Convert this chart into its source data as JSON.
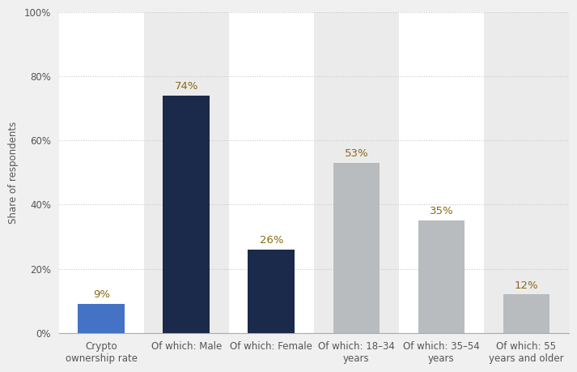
{
  "categories": [
    "Crypto\nownership rate",
    "Of which: Male",
    "Of which: Female",
    "Of which: 18–34\nyears",
    "Of which: 35–54\nyears",
    "Of which: 55\nyears and older"
  ],
  "values": [
    9,
    74,
    26,
    53,
    35,
    12
  ],
  "bar_colors": [
    "#4472C4",
    "#1b2a4a",
    "#1b2a4a",
    "#b8bcbe",
    "#b8bcbe",
    "#b8bcbe"
  ],
  "col_bg_colors": [
    "#ffffff",
    "#ebebeb",
    "#ffffff",
    "#ebebeb",
    "#ffffff",
    "#ebebeb"
  ],
  "value_label_color": "#8b6914",
  "ylabel": "Share of respondents",
  "ylim": [
    0,
    100
  ],
  "yticks": [
    0,
    20,
    40,
    60,
    80,
    100
  ],
  "ytick_labels": [
    "0%",
    "20%",
    "40%",
    "60%",
    "80%",
    "100%"
  ],
  "background_color": "#f0f0f0",
  "plot_bg_color": "#f0f0f0",
  "grid_color": "#d0d0d0",
  "bar_width": 0.55,
  "label_fontsize": 9.5,
  "tick_fontsize": 8.5,
  "ylabel_fontsize": 8.5,
  "tick_color": "#555555"
}
